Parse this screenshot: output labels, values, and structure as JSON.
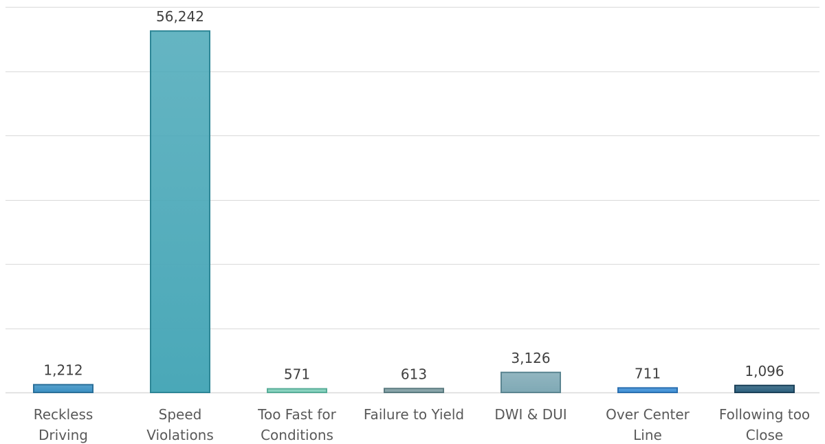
{
  "chart_data": {
    "type": "bar",
    "title": "",
    "xlabel": "",
    "ylabel": "",
    "categories": [
      [
        "Reckless",
        "Driving"
      ],
      [
        "Speed",
        "Violations"
      ],
      [
        "Too Fast for",
        "Conditions"
      ],
      [
        "Failure to Yield"
      ],
      [
        "DWI & DUI"
      ],
      [
        "Over Center",
        "Line"
      ],
      [
        "Following too",
        "Close"
      ]
    ],
    "values": [
      1212,
      56242,
      571,
      613,
      3126,
      711,
      1096
    ],
    "data_labels": [
      "1,212",
      "56,242",
      "571",
      "613",
      "3,126",
      "711",
      "1,096"
    ],
    "ylim": [
      0,
      60000
    ],
    "y_gridline_step": 10000,
    "y_tick_labels_shown": false,
    "grid": true,
    "legend": "none",
    "bar_colors": [
      "#3a90c3",
      "#4aa8b8",
      "#7fcfba",
      "#7f9ea3",
      "#7fa9b5",
      "#3d8fd6",
      "#2b5f7d"
    ],
    "bar_colors_dark": [
      "#2a6f99",
      "#2d8696",
      "#58ad98",
      "#5b7b80",
      "#5b8591",
      "#2a6fb0",
      "#1b4159"
    ]
  }
}
